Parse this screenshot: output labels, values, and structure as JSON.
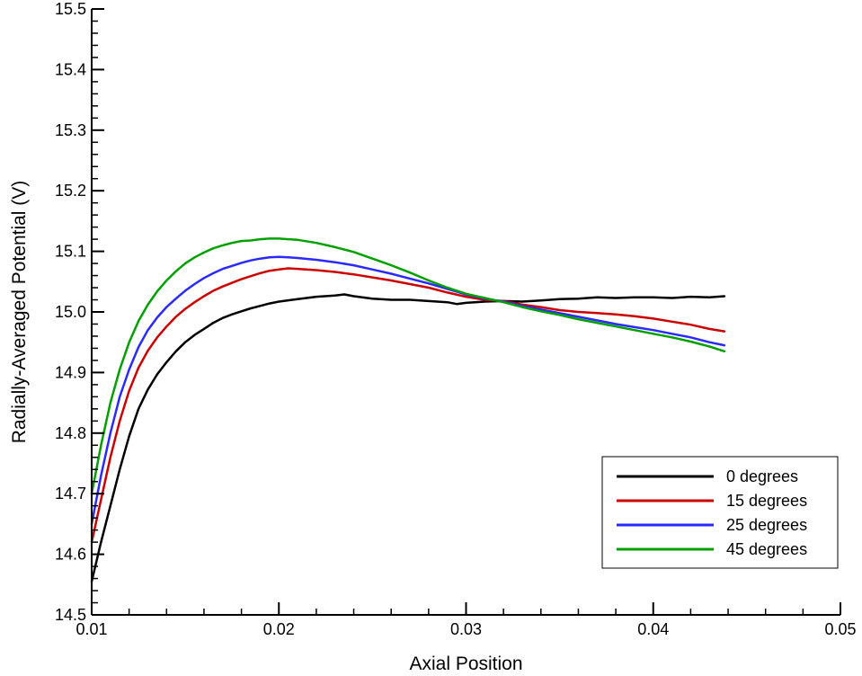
{
  "chart_data": {
    "type": "line",
    "xlabel": "Axial Position",
    "ylabel": "Radially-Averaged Potential (V)",
    "xlim": [
      0.01,
      0.05
    ],
    "ylim": [
      14.5,
      15.5
    ],
    "xticks": [
      "0.01",
      "0.02",
      "0.03",
      "0.04",
      "0.05"
    ],
    "yticks": [
      "14.5",
      "14.6",
      "14.7",
      "14.8",
      "14.9",
      "15.0",
      "15.1",
      "15.2",
      "15.3",
      "15.4",
      "15.5"
    ],
    "grid": false,
    "legend_position": "bottom-right",
    "series": [
      {
        "name": "0 degrees",
        "color": "#000000",
        "x": [
          0.01,
          0.0105,
          0.011,
          0.0115,
          0.012,
          0.0125,
          0.013,
          0.0135,
          0.014,
          0.0145,
          0.015,
          0.0155,
          0.016,
          0.0165,
          0.017,
          0.0175,
          0.018,
          0.0185,
          0.019,
          0.0195,
          0.02,
          0.021,
          0.022,
          0.023,
          0.0235,
          0.024,
          0.025,
          0.026,
          0.027,
          0.028,
          0.029,
          0.0295,
          0.03,
          0.031,
          0.032,
          0.033,
          0.034,
          0.035,
          0.036,
          0.037,
          0.038,
          0.039,
          0.04,
          0.041,
          0.042,
          0.043,
          0.0438
        ],
        "y": [
          14.555,
          14.62,
          14.68,
          14.74,
          14.795,
          14.84,
          14.872,
          14.897,
          14.917,
          14.935,
          14.95,
          14.962,
          14.972,
          14.982,
          14.99,
          14.996,
          15.001,
          15.006,
          15.01,
          15.014,
          15.017,
          15.021,
          15.025,
          15.027,
          15.029,
          15.026,
          15.022,
          15.02,
          15.02,
          15.018,
          15.016,
          15.013,
          15.015,
          15.017,
          15.018,
          15.017,
          15.019,
          15.021,
          15.022,
          15.024,
          15.023,
          15.024,
          15.024,
          15.023,
          15.025,
          15.024,
          15.026
        ]
      },
      {
        "name": "15 degrees",
        "color": "#cc0000",
        "x": [
          0.01,
          0.0105,
          0.011,
          0.0115,
          0.012,
          0.0125,
          0.013,
          0.0135,
          0.014,
          0.0145,
          0.015,
          0.0155,
          0.016,
          0.0165,
          0.017,
          0.0175,
          0.018,
          0.0185,
          0.019,
          0.0195,
          0.02,
          0.0205,
          0.021,
          0.022,
          0.023,
          0.024,
          0.025,
          0.026,
          0.027,
          0.028,
          0.029,
          0.03,
          0.031,
          0.032,
          0.033,
          0.034,
          0.035,
          0.036,
          0.037,
          0.038,
          0.039,
          0.04,
          0.041,
          0.042,
          0.043,
          0.0438
        ],
        "y": [
          14.62,
          14.69,
          14.76,
          14.82,
          14.87,
          14.908,
          14.936,
          14.958,
          14.976,
          14.992,
          15.005,
          15.016,
          15.026,
          15.035,
          15.042,
          15.048,
          15.054,
          15.059,
          15.064,
          15.068,
          15.07,
          15.072,
          15.071,
          15.069,
          15.066,
          15.062,
          15.057,
          15.052,
          15.046,
          15.04,
          15.032,
          15.025,
          15.02,
          15.018,
          15.012,
          15.008,
          15.003,
          15.0,
          14.998,
          14.996,
          14.993,
          14.989,
          14.984,
          14.979,
          14.972,
          14.968
        ]
      },
      {
        "name": "25 degrees",
        "color": "#2a2aff",
        "x": [
          0.01,
          0.0105,
          0.011,
          0.0115,
          0.012,
          0.0125,
          0.013,
          0.0135,
          0.014,
          0.0145,
          0.015,
          0.0155,
          0.016,
          0.0165,
          0.017,
          0.0175,
          0.018,
          0.0185,
          0.019,
          0.0195,
          0.02,
          0.0205,
          0.021,
          0.022,
          0.023,
          0.024,
          0.025,
          0.026,
          0.027,
          0.028,
          0.029,
          0.03,
          0.031,
          0.032,
          0.033,
          0.034,
          0.035,
          0.036,
          0.037,
          0.038,
          0.039,
          0.04,
          0.041,
          0.042,
          0.043,
          0.0438
        ],
        "y": [
          14.65,
          14.73,
          14.8,
          14.86,
          14.905,
          14.942,
          14.97,
          14.991,
          15.008,
          15.022,
          15.035,
          15.046,
          15.056,
          15.064,
          15.071,
          15.076,
          15.081,
          15.085,
          15.088,
          15.09,
          15.091,
          15.09,
          15.089,
          15.086,
          15.082,
          15.077,
          15.07,
          15.063,
          15.055,
          15.047,
          15.038,
          15.029,
          15.022,
          15.017,
          15.01,
          15.004,
          14.998,
          14.992,
          14.986,
          14.98,
          14.975,
          14.97,
          14.964,
          14.958,
          14.95,
          14.945
        ]
      },
      {
        "name": "45 degrees",
        "color": "#00a000",
        "x": [
          0.01,
          0.0105,
          0.011,
          0.0115,
          0.012,
          0.0125,
          0.013,
          0.0135,
          0.014,
          0.0145,
          0.015,
          0.0155,
          0.016,
          0.0165,
          0.017,
          0.0175,
          0.018,
          0.0185,
          0.019,
          0.0195,
          0.02,
          0.0205,
          0.021,
          0.022,
          0.023,
          0.024,
          0.025,
          0.026,
          0.027,
          0.028,
          0.029,
          0.03,
          0.031,
          0.032,
          0.033,
          0.034,
          0.035,
          0.036,
          0.037,
          0.038,
          0.039,
          0.04,
          0.041,
          0.042,
          0.043,
          0.0438
        ],
        "y": [
          14.7,
          14.78,
          14.85,
          14.905,
          14.95,
          14.985,
          15.012,
          15.034,
          15.052,
          15.067,
          15.08,
          15.09,
          15.098,
          15.105,
          15.11,
          15.114,
          15.117,
          15.118,
          15.12,
          15.121,
          15.121,
          15.12,
          15.119,
          15.114,
          15.107,
          15.099,
          15.088,
          15.077,
          15.065,
          15.052,
          15.04,
          15.03,
          15.023,
          15.016,
          15.008,
          15.001,
          14.995,
          14.988,
          14.982,
          14.976,
          14.97,
          14.964,
          14.958,
          14.951,
          14.943,
          14.935
        ]
      }
    ]
  }
}
